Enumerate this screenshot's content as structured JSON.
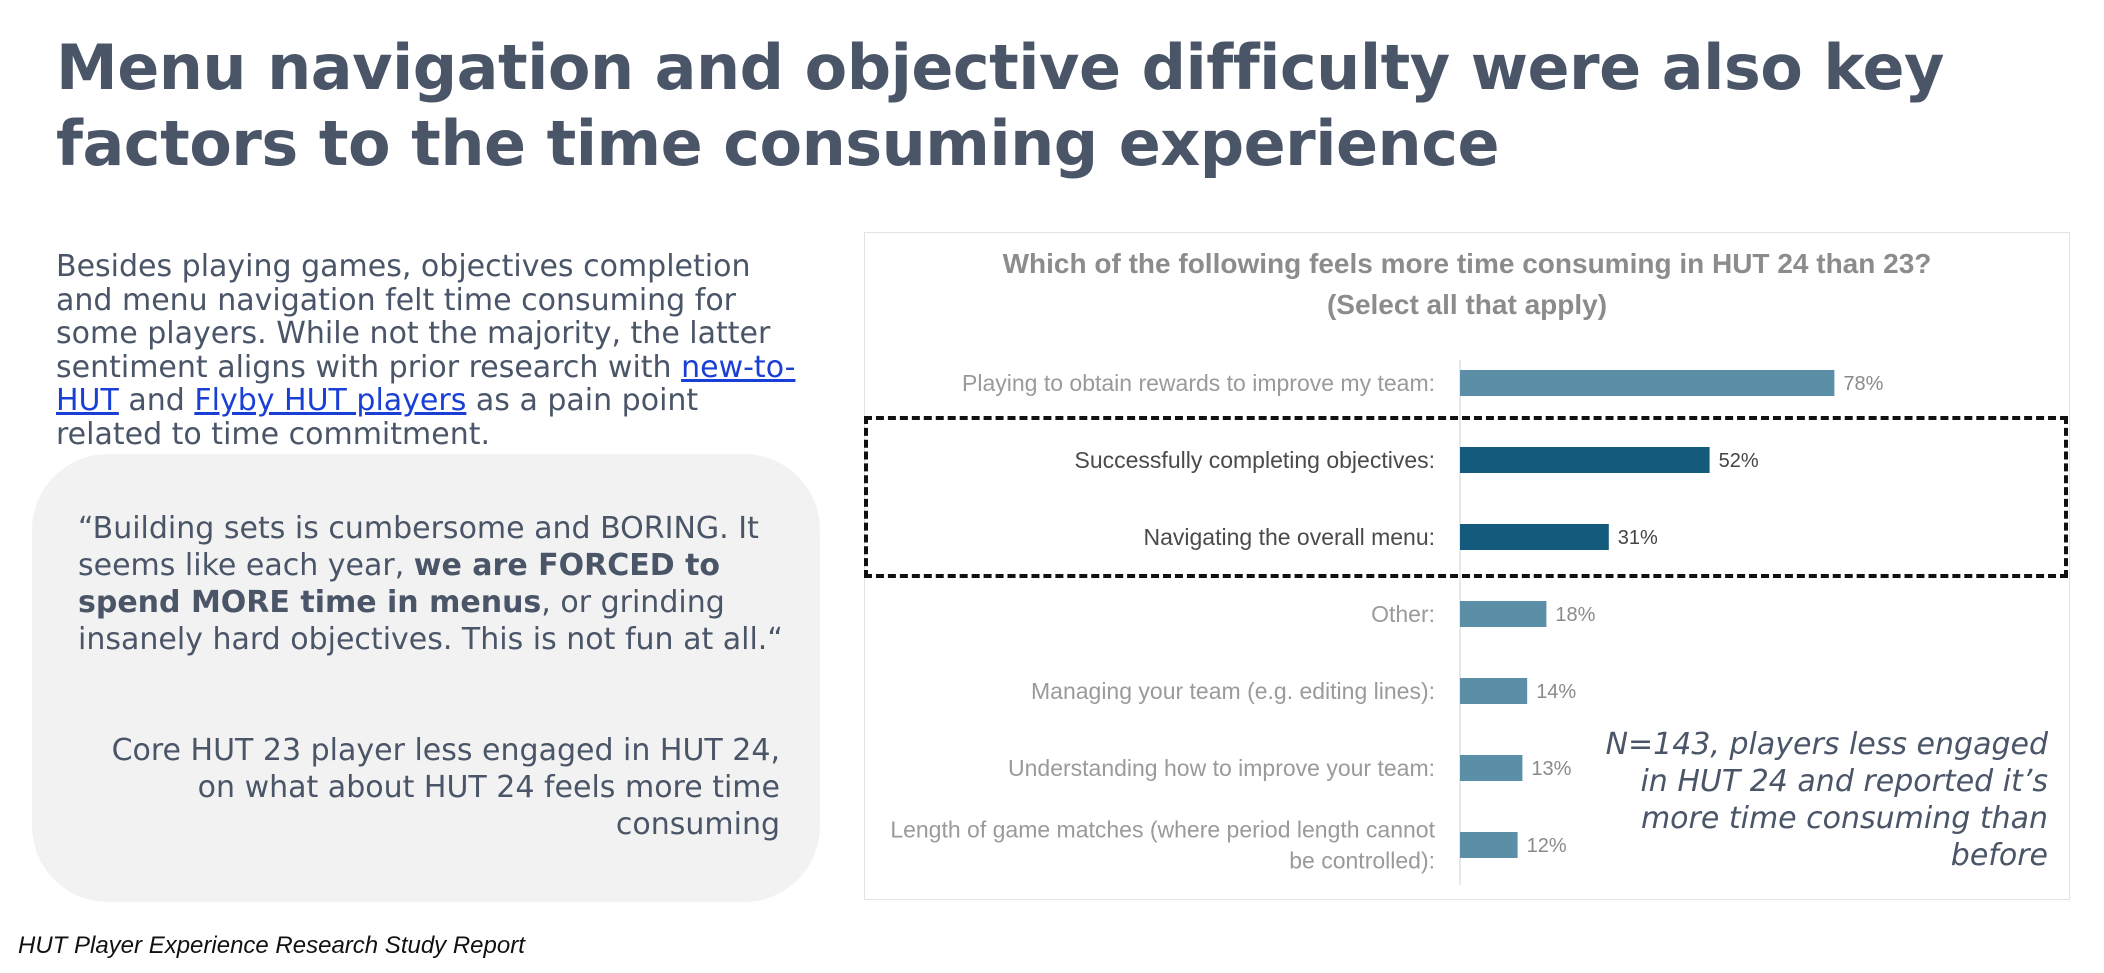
{
  "slide": {
    "title": "Menu navigation and objective difficulty were also key factors to the time consuming experience",
    "body": {
      "part1": "Besides playing games, objectives completion and menu navigation felt time consuming for some players. While not the majority, the latter sentiment aligns with prior research with ",
      "link1": "new-to-HUT",
      "part2": " and ",
      "link2": "Flyby HUT players",
      "part3": " as a pain point related to time commitment."
    },
    "quote": {
      "before": "“Building sets is cumbersome and BORING. It seems like each year, ",
      "bold": "we are FORCED to spend MORE time in menus",
      "after": ", or grinding insanely hard objectives. This is not fun at all.“",
      "attribution": "Core HUT 23 player less engaged in HUT 24, on what about HUT 24 feels more time consuming"
    },
    "chart_note": "N=143, players less engaged in HUT 24 and reported it’s more time consuming than before",
    "footer": "HUT Player Experience Research Study Report"
  },
  "colors": {
    "bar_default": "#5b8fa8",
    "bar_highlight": "#145a7c",
    "label_default": "#9a9a9a",
    "label_highlight": "#4a4a4a",
    "title_gray": "#8c8c8c"
  },
  "chart_data": {
    "type": "bar",
    "orientation": "horizontal",
    "title": "Which of the following feels more time consuming in HUT 24 than 23?",
    "subtitle": "(Select all that apply)",
    "categories": [
      "Playing  to obtain rewards to improve my team:",
      "Successfully completing objectives:",
      "Navigating the overall menu:",
      "Other:",
      "Managing your team (e.g. editing lines):",
      "Understanding how to improve your team:",
      "Length of game matches (where period length cannot be controlled):"
    ],
    "category_lines": [
      [
        "Playing  to obtain rewards to improve my team:"
      ],
      [
        "Successfully completing objectives:"
      ],
      [
        "Navigating the overall menu:"
      ],
      [
        "Other:"
      ],
      [
        "Managing your team (e.g. editing lines):"
      ],
      [
        "Understanding how to improve your team:"
      ],
      [
        "Length of game matches (where period length cannot",
        "be controlled):"
      ]
    ],
    "values": [
      78,
      52,
      31,
      18,
      14,
      13,
      12
    ],
    "value_labels": [
      "78%",
      "52%",
      "31%",
      "18%",
      "14%",
      "13%",
      "12%"
    ],
    "highlighted": [
      false,
      true,
      true,
      false,
      false,
      false,
      false
    ],
    "xlim": [
      0,
      100
    ],
    "unit": "%"
  }
}
